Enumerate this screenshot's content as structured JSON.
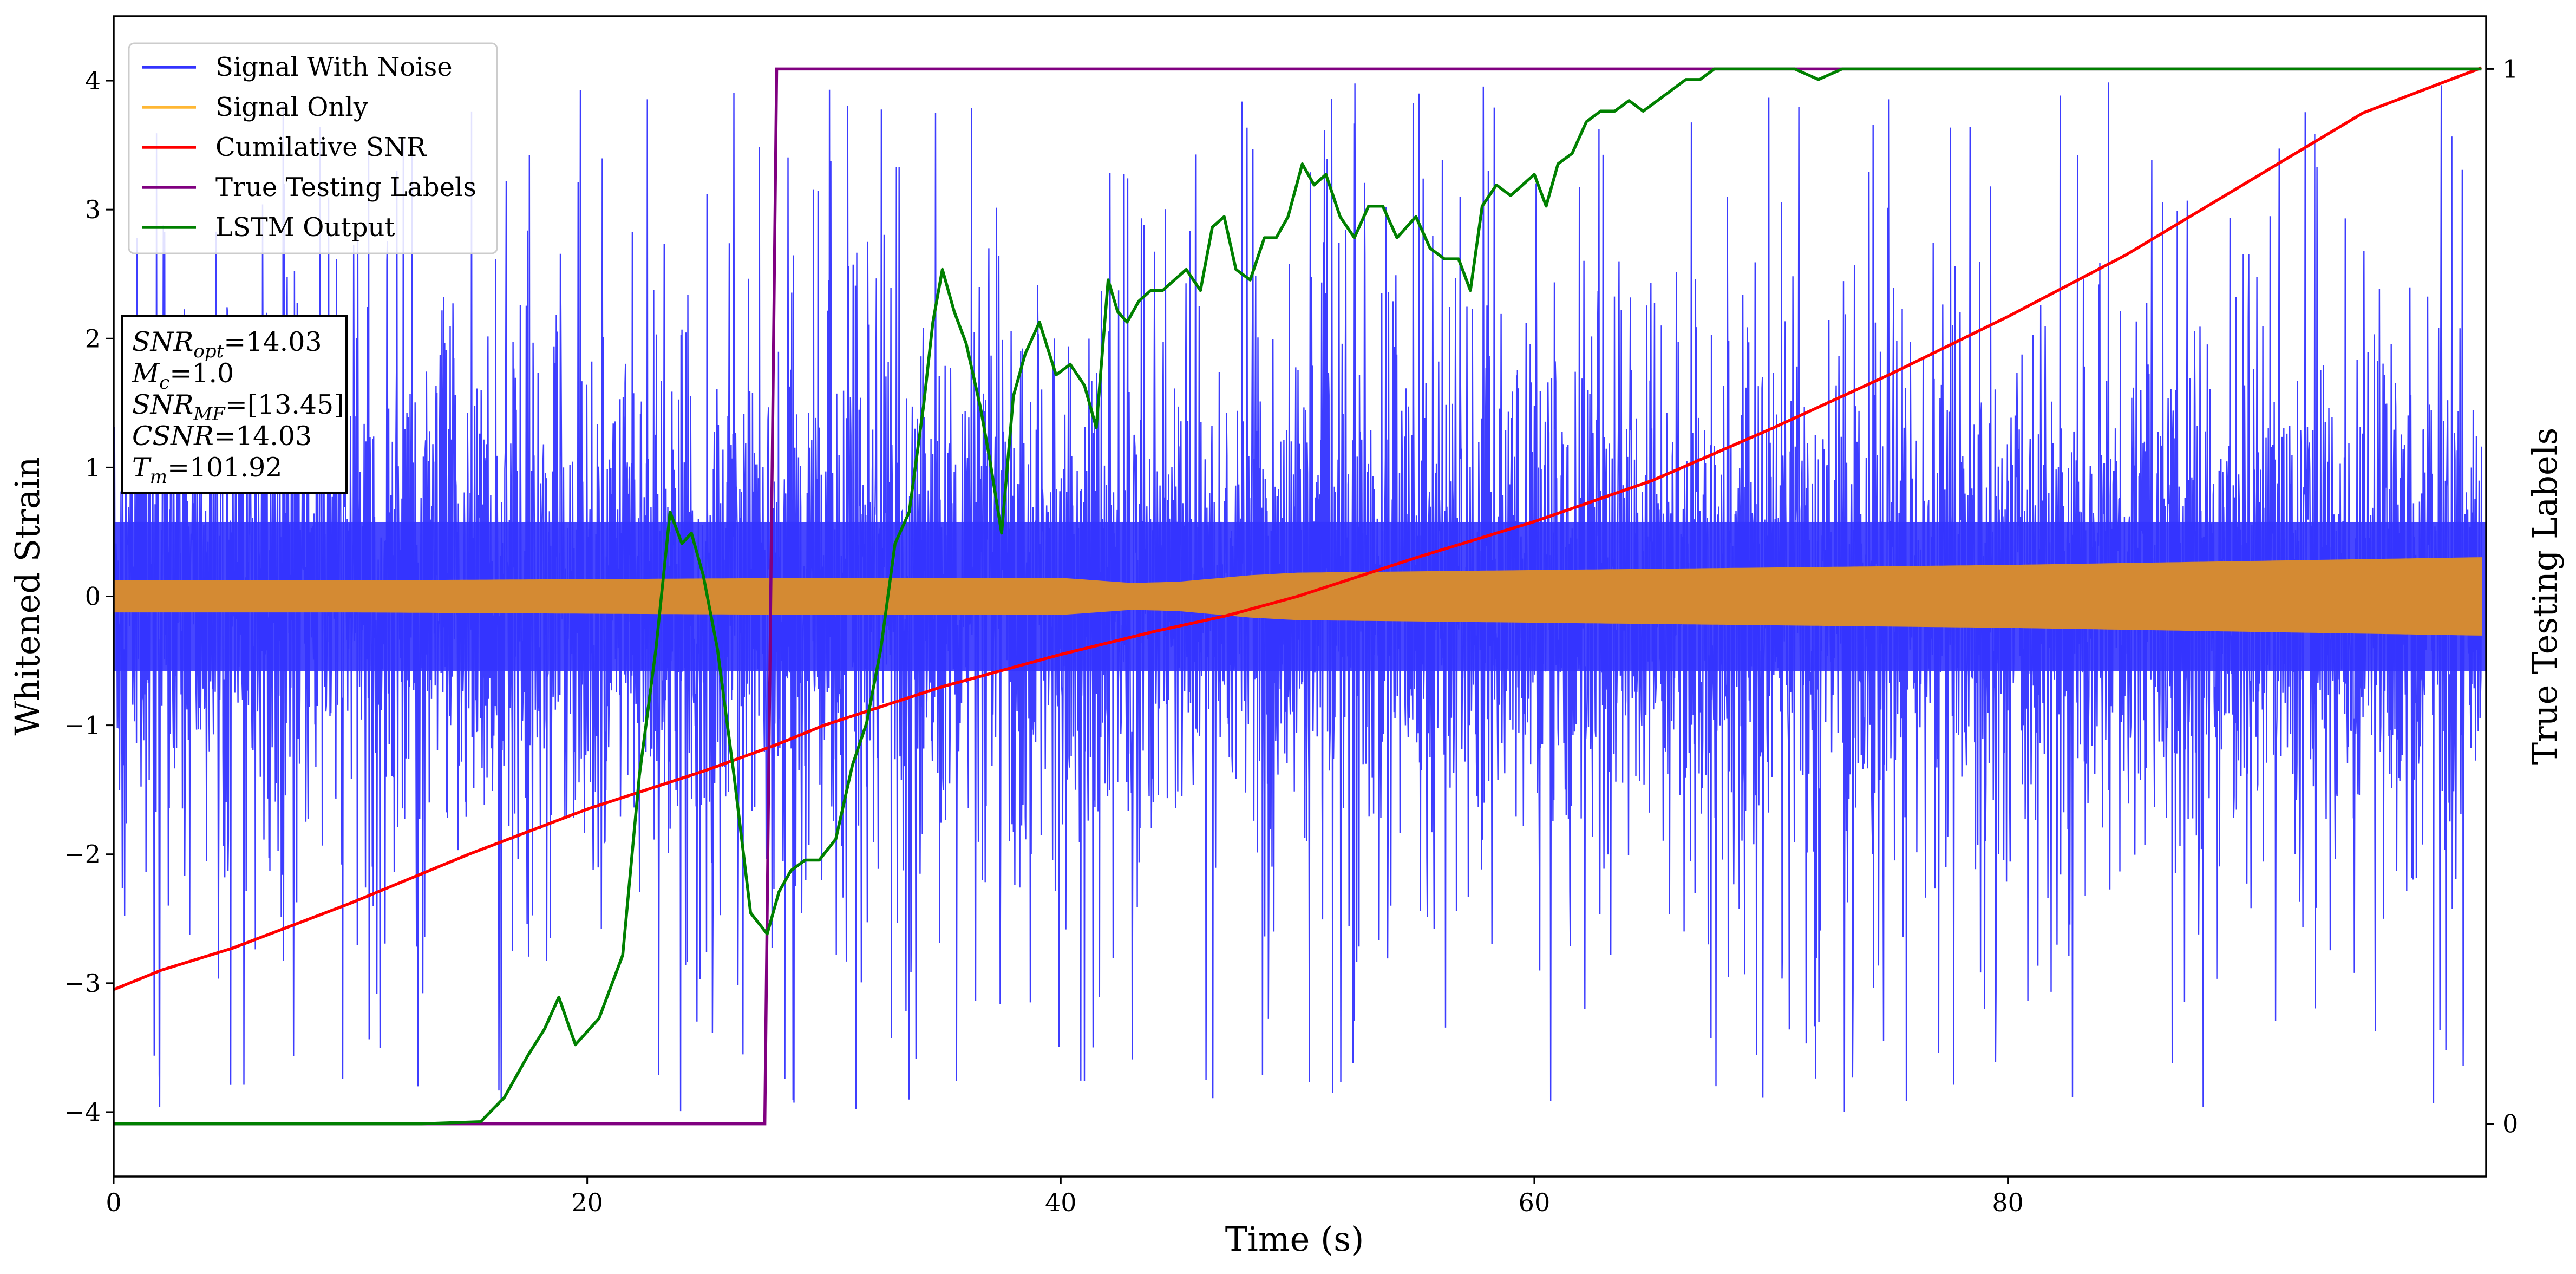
{
  "chart_data": {
    "type": "line",
    "xlabel": "Time (s)",
    "ylabel": "Whitened Strain",
    "y2label": "True Testing Labels",
    "xlim": [
      0,
      100.2
    ],
    "ylim": [
      -4.5,
      4.5
    ],
    "y2lim": [
      -0.05,
      1.05
    ],
    "x_ticks": [
      0,
      20,
      40,
      60,
      80
    ],
    "y_ticks": [
      -4,
      -3,
      -2,
      -1,
      0,
      1,
      2,
      3,
      4
    ],
    "y2_ticks": [
      0,
      1
    ],
    "grid": false,
    "legend": {
      "position": "top-left",
      "entries": [
        {
          "label": "Signal With Noise",
          "color": "#3333ff"
        },
        {
          "label": "Signal Only",
          "color": "#ffb733"
        },
        {
          "label": "Cumilative SNR",
          "color": "#ff0000"
        },
        {
          "label": "True Testing Labels",
          "color": "#800080"
        },
        {
          "label": "LSTM Output",
          "color": "#008000"
        }
      ]
    },
    "info_box": [
      {
        "sym": "SNR",
        "sub": "opt",
        "value": "=14.03"
      },
      {
        "sym": "M",
        "sub": "c",
        "value": "=1.0"
      },
      {
        "sym": "SNR",
        "sub": "MF",
        "value": "=[13.45]"
      },
      {
        "sym": "CSNR",
        "sub": "",
        "value": "=14.03"
      },
      {
        "sym": "T",
        "sub": "m",
        "value": "=101.92"
      }
    ],
    "series": [
      {
        "name": "Signal With Noise",
        "color": "#3333ff",
        "style": "dense noise band",
        "core_amplitude": 1.05,
        "peak_range": [
          -4.1,
          4.1
        ]
      },
      {
        "name": "Signal Only",
        "color": "#d48a33",
        "style": "oscillation envelope",
        "x": [
          0,
          10,
          20,
          30,
          40,
          43,
          45,
          48,
          50,
          55,
          60,
          70,
          80,
          90,
          100
        ],
        "amplitude": [
          0.12,
          0.12,
          0.13,
          0.14,
          0.14,
          0.1,
          0.11,
          0.16,
          0.18,
          0.19,
          0.2,
          0.22,
          0.24,
          0.27,
          0.3
        ]
      },
      {
        "name": "Cumilative SNR",
        "color": "#ff0000",
        "axis": "left",
        "x": [
          0,
          2,
          5,
          10,
          15,
          20,
          25,
          28,
          30,
          35,
          40,
          44,
          47,
          50,
          55,
          60,
          65,
          70,
          75,
          80,
          85,
          90,
          95,
          100
        ],
        "y": [
          -3.05,
          -2.9,
          -2.73,
          -2.38,
          -2.0,
          -1.65,
          -1.35,
          -1.15,
          -1.0,
          -0.7,
          -0.45,
          -0.27,
          -0.15,
          0.0,
          0.3,
          0.58,
          0.9,
          1.3,
          1.72,
          2.17,
          2.65,
          3.2,
          3.75,
          4.1
        ]
      },
      {
        "name": "True Testing Labels",
        "color": "#800080",
        "axis": "right",
        "x": [
          0,
          27.5,
          28.0,
          100
        ],
        "y": [
          0,
          0,
          1,
          1
        ]
      },
      {
        "name": "LSTM Output",
        "color": "#008000",
        "axis": "right",
        "x": [
          0,
          13,
          15.5,
          16.5,
          17.5,
          18.2,
          18.8,
          19.5,
          20.5,
          21.5,
          22.2,
          22.9,
          23.5,
          24.0,
          24.4,
          24.9,
          25.5,
          26.2,
          26.9,
          27.6,
          28.1,
          28.6,
          29.2,
          29.8,
          30.5,
          31.2,
          31.8,
          32.4,
          33.0,
          33.6,
          34.2,
          34.6,
          35.0,
          35.5,
          36.0,
          36.6,
          37.0,
          37.5,
          38.0,
          38.5,
          39.1,
          39.8,
          40.4,
          41.0,
          41.5,
          42.0,
          42.4,
          42.8,
          43.3,
          43.8,
          44.3,
          44.8,
          45.3,
          45.9,
          46.4,
          46.9,
          47.4,
          48.0,
          48.6,
          49.1,
          49.6,
          50.2,
          50.7,
          51.2,
          51.8,
          52.4,
          53.0,
          53.6,
          54.2,
          55.0,
          55.6,
          56.2,
          56.8,
          57.3,
          57.8,
          58.4,
          59.0,
          59.5,
          60.0,
          60.5,
          61.0,
          61.6,
          62.2,
          62.8,
          63.4,
          64.0,
          64.6,
          65.2,
          65.8,
          66.4,
          67.0,
          67.6,
          68.2,
          69.0,
          70.0,
          71.0,
          72.0,
          73.0,
          74.0,
          76.0,
          78.0,
          80.0,
          82.0,
          84.0,
          88.0,
          92.0,
          100
        ],
        "y": [
          0.0,
          0.0,
          0.002,
          0.025,
          0.065,
          0.09,
          0.12,
          0.075,
          0.1,
          0.16,
          0.33,
          0.45,
          0.58,
          0.55,
          0.56,
          0.52,
          0.45,
          0.33,
          0.2,
          0.18,
          0.22,
          0.24,
          0.25,
          0.25,
          0.27,
          0.34,
          0.38,
          0.45,
          0.55,
          0.58,
          0.68,
          0.76,
          0.81,
          0.77,
          0.74,
          0.68,
          0.63,
          0.56,
          0.69,
          0.73,
          0.76,
          0.71,
          0.72,
          0.7,
          0.66,
          0.8,
          0.77,
          0.76,
          0.78,
          0.79,
          0.79,
          0.8,
          0.81,
          0.79,
          0.85,
          0.86,
          0.81,
          0.8,
          0.84,
          0.84,
          0.86,
          0.91,
          0.89,
          0.9,
          0.86,
          0.84,
          0.87,
          0.87,
          0.84,
          0.86,
          0.83,
          0.82,
          0.82,
          0.79,
          0.87,
          0.89,
          0.88,
          0.89,
          0.9,
          0.87,
          0.91,
          0.92,
          0.95,
          0.96,
          0.96,
          0.97,
          0.96,
          0.97,
          0.98,
          0.99,
          0.99,
          1.0,
          1.0,
          1.0,
          1.0,
          1.0,
          0.99,
          1.0,
          1.0,
          1.0,
          1.0,
          1.0,
          1.0,
          1.0,
          1.0,
          1.0,
          1.0
        ]
      }
    ]
  }
}
